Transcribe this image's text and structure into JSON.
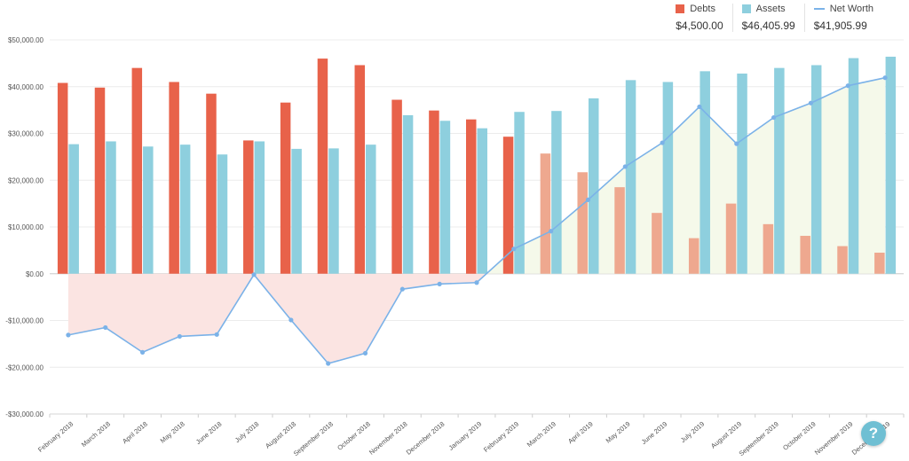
{
  "legend": {
    "items": [
      {
        "name": "Debts",
        "value": "$4,500.00",
        "color": "#e8624a",
        "shape": "square"
      },
      {
        "name": "Assets",
        "value": "$46,405.99",
        "color": "#8ecfde",
        "shape": "square"
      },
      {
        "name": "Net Worth",
        "value": "$41,905.99",
        "color": "#7bb2e8",
        "shape": "line"
      }
    ]
  },
  "help": {
    "label": "?"
  },
  "chart_data": {
    "type": "bar",
    "categories": [
      "February 2018",
      "March 2018",
      "April 2018",
      "May 2018",
      "June 2018",
      "July 2018",
      "August 2018",
      "September 2018",
      "October 2018",
      "November 2018",
      "December 2018",
      "January 2019",
      "February 2019",
      "March 2019",
      "April 2019",
      "May 2019",
      "June 2019",
      "July 2019",
      "August 2019",
      "September 2019",
      "October 2019",
      "November 2019",
      "December 2019"
    ],
    "series": [
      {
        "name": "Debts",
        "color": "#e8624a",
        "faded_color": "#eea88f",
        "values": [
          40800,
          39800,
          44000,
          41000,
          38500,
          28500,
          36600,
          46000,
          44600,
          37200,
          34900,
          33000,
          29300,
          25700,
          21700,
          18500,
          13000,
          7600,
          15000,
          10600,
          8100,
          5900,
          4500
        ]
      },
      {
        "name": "Assets",
        "color": "#8ecfde",
        "values": [
          27700,
          28300,
          27200,
          27600,
          25500,
          28300,
          26700,
          26800,
          27600,
          33900,
          32700,
          31100,
          34600,
          34800,
          37500,
          41400,
          41000,
          43300,
          42800,
          44000,
          44600,
          46100,
          46406
        ]
      },
      {
        "name": "Net Worth",
        "color": "#7bb2e8",
        "values": [
          -13100,
          -11500,
          -16800,
          -13400,
          -13000,
          -200,
          -9900,
          -19200,
          -17000,
          -3300,
          -2200,
          -1900,
          5300,
          9100,
          15800,
          22900,
          28000,
          35700,
          27800,
          33400,
          36500,
          40200,
          41906
        ]
      }
    ],
    "faded_debts_from_index": 13,
    "ylim": [
      -30000,
      50000
    ],
    "yticks": [
      -30000,
      -20000,
      -10000,
      0,
      10000,
      20000,
      30000,
      40000,
      50000
    ],
    "ytick_labels": [
      "-$30,000.00",
      "-$20,000.00",
      "-$10,000.00",
      "$0.00",
      "$10,000.00",
      "$20,000.00",
      "$30,000.00",
      "$40,000.00",
      "$50,000.00"
    ],
    "grid": true,
    "legend_position": "top-right",
    "area_colors": {
      "negative": "#fbe4e2",
      "positive": "#f5f9ea"
    }
  }
}
